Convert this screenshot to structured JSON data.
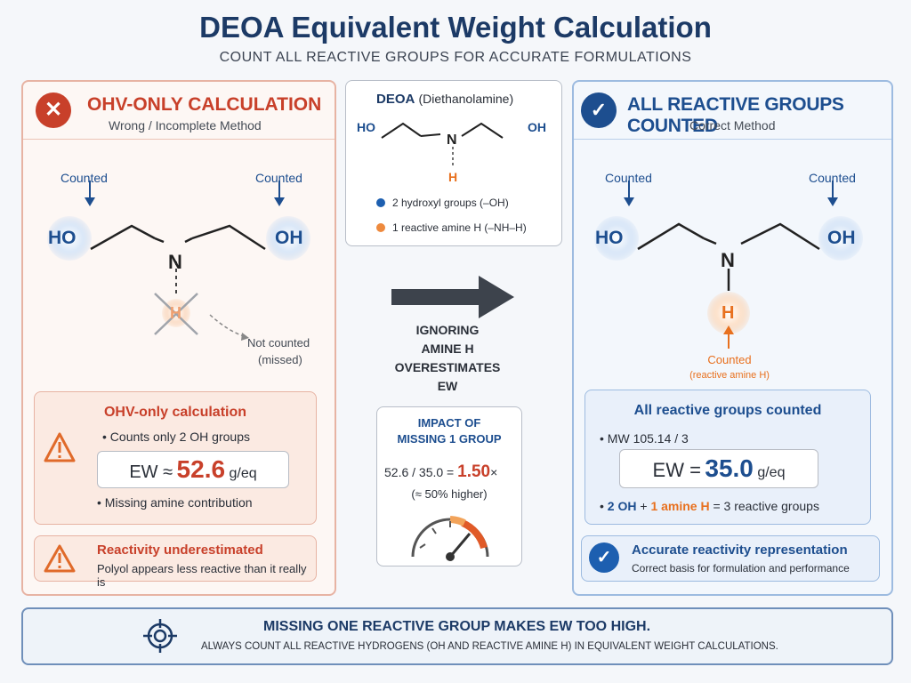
{
  "header": {
    "title": "DEOA Equivalent Weight Calculation",
    "subtitle": "COUNT ALL REACTIVE GROUPS FOR ACCURATE FORMULATIONS"
  },
  "left": {
    "title": "OHV-ONLY CALCULATION",
    "subtitle": "Wrong / Incomplete Method",
    "counted_left": "Counted",
    "counted_right": "Counted",
    "ho": "HO",
    "oh": "OH",
    "n": "N",
    "h": "H",
    "not_counted": "Not counted",
    "missed": "(missed)",
    "calc": {
      "title": "OHV-only calculation",
      "bullet1": "Counts only 2 OH groups",
      "ew_prefix": "EW ≈",
      "ew_value": "52.6",
      "ew_unit": "g/eq",
      "bullet2": "Missing amine contribution"
    },
    "warning": {
      "title": "Reactivity underestimated",
      "text": "Polyol appears less reactive than it really is"
    },
    "color": "#c8402a"
  },
  "center": {
    "molecule_name": "DEOA",
    "molecule_full": "(Diethanolamine)",
    "ho": "HO",
    "oh": "OH",
    "n": "N",
    "h": "H",
    "legend1": "2 hydroxyl groups (–OH)",
    "legend2": "1 reactive amine H (–NH–H)",
    "arrow_text": [
      "IGNORING",
      "AMINE H",
      "OVERESTIMATES",
      "EW"
    ],
    "impact": {
      "title1": "IMPACT OF",
      "title2": "MISSING 1 GROUP",
      "calc_prefix": "52.6 / 35.0 =",
      "ratio": "1.50",
      "times": "×",
      "note": "(≈ 50% higher)"
    }
  },
  "right": {
    "title": "ALL REACTIVE GROUPS COUNTED",
    "subtitle": "Correct Method",
    "counted_left": "Counted",
    "counted_right": "Counted",
    "ho": "HO",
    "oh": "OH",
    "n": "N",
    "h": "H",
    "counted_bottom": "Counted",
    "counted_bottom_sub": "(reactive amine H)",
    "calc": {
      "title": "All reactive groups counted",
      "bullet1": "MW 105.14 / 3",
      "ew_prefix": "EW =",
      "ew_value": "35.0",
      "ew_unit": "g/eq",
      "b2_oh": "2 OH",
      "b2_plus": "+",
      "b2_amine": "1 amine H",
      "b2_rest": "= 3 reactive groups"
    },
    "accurate": {
      "title": "Accurate reactivity representation",
      "text": "Correct basis for formulation and performance"
    },
    "color": "#1d4e8f"
  },
  "bottom": {
    "title": "MISSING ONE REACTIVE GROUP MAKES EW TOO HIGH.",
    "text": "ALWAYS COUNT ALL REACTIVE HYDROGENS (OH AND REACTIVE AMINE H) IN EQUIVALENT WEIGHT CALCULATIONS."
  }
}
